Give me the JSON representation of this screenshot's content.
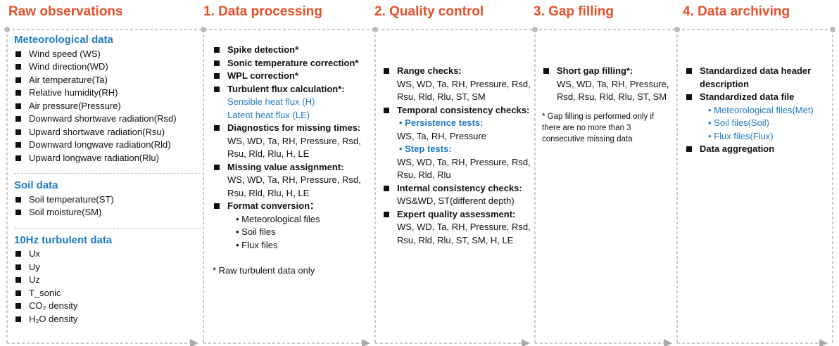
{
  "columns": [
    {
      "title": "Raw observations",
      "sections": [
        {
          "heading": "Meteorological data",
          "items": [
            "Wind speed (WS)",
            "Wind direction(WD)",
            "Air temperature(Ta)",
            "Relative humidity(RH)",
            "Air pressure(Pressure)",
            "Downward shortwave radiation(Rsd)",
            "Upward shortwave radiation(Rsu)",
            "Downward longwave radiation(Rld)",
            "Upward longwave radiation(Rlu)"
          ]
        },
        {
          "heading": "Soil data",
          "items": [
            "Soil temperature(ST)",
            "Soil moisture(SM)"
          ]
        },
        {
          "heading": "10Hz turbulent data",
          "items": [
            "Ux",
            "Uy",
            "Uz",
            "T_sonic",
            "CO₂ density",
            "H₂O density"
          ]
        }
      ]
    },
    {
      "title": "1. Data processing",
      "items": [
        {
          "label": "Spike detection*"
        },
        {
          "label": "Sonic temperature correction*"
        },
        {
          "label": "WPL correction*"
        },
        {
          "label": "Turbulent flux calculation*:",
          "details": [
            "Sensible heat flux (H)",
            "Latent heat flux (LE)"
          ]
        },
        {
          "label": "Diagnostics for missing times:",
          "details": [
            "WS, WD, Ta, RH, Pressure, Rsd, Rsu, Rld, Rlu, H, LE"
          ]
        },
        {
          "label": "Missing value assignment:",
          "details": [
            "WS, WD, Ta, RH, Pressure, Rsd, Rsu, Rld, Rlu, H, LE"
          ]
        },
        {
          "label": "Format conversion：",
          "details": [
            "• Meteorological files",
            "• Soil files",
            "• Flux files"
          ]
        }
      ],
      "note": "* Raw turbulent data only"
    },
    {
      "title": "2. Quality control",
      "items": [
        {
          "label": "Range checks:",
          "details": [
            "WS, WD, Ta, RH, Pressure, Rsd, Rsu, Rld, Rlu, ST, SM"
          ]
        },
        {
          "label": "Temporal consistency checks:",
          "subtests": [
            {
              "name": "• Persistence tests:",
              "details": "WS, Ta, RH, Pressure"
            },
            {
              "name": "• Step tests:",
              "details": "WS, WD, Ta, RH, Pressure, Rsd, Rsu, Rld, Rlu"
            }
          ]
        },
        {
          "label": "Internal consistency checks:",
          "details": [
            "WS&WD, ST(different depth)"
          ]
        },
        {
          "label": "Expert quality assessment:",
          "details": [
            "WS, WD, Ta, RH, Pressure, Rsd, Rsu, Rld, Rlu, ST, SM, H, LE"
          ]
        }
      ]
    },
    {
      "title": "3. Gap filling",
      "items": [
        {
          "label": "Short gap filling*:",
          "details": [
            "WS, WD, Ta, RH, Pressure, Rsd, Rsu, Rld, Rlu, ST, SM"
          ]
        }
      ],
      "note": "* Gap filling is performed only if there are no more than 3 consecutive missing data"
    },
    {
      "title": "4. Data archiving",
      "items": [
        {
          "label": "Standardized data header description"
        },
        {
          "label": "Standardized data file",
          "details": [
            "• Meteorological files(Met)",
            "• Soil files(Soil)",
            "• Flux files(Flux)"
          ]
        },
        {
          "label": "Data aggregation"
        }
      ]
    }
  ]
}
